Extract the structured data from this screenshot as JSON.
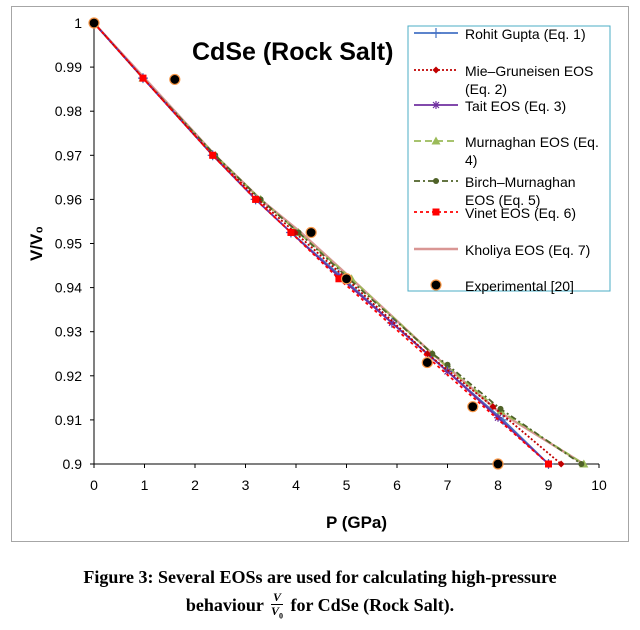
{
  "chart_data": {
    "type": "line",
    "title": "CdSe (Rock Salt)",
    "xlabel": "P (GPa)",
    "ylabel": "V/V₀",
    "xlim": [
      0,
      10
    ],
    "ylim": [
      0.9,
      1.0
    ],
    "x_ticks": [
      "0",
      "1",
      "2",
      "3",
      "4",
      "5",
      "6",
      "7",
      "8",
      "9",
      "10"
    ],
    "y_ticks": [
      "0.9",
      "0.91",
      "0.92",
      "0.93",
      "0.94",
      "0.95",
      "0.96",
      "0.97",
      "0.98",
      "0.99",
      "1"
    ],
    "grid": false,
    "legend_position": "top-right",
    "series": [
      {
        "name": "Rohit Gupta (Eq. 1)",
        "color": "#4472c4",
        "dash": "",
        "marker": "plus",
        "marker_color": "#4472c4",
        "x": [
          0,
          0.97,
          2.35,
          3.2,
          3.9,
          4.85,
          5.9,
          7.0,
          8.1,
          9.0
        ],
        "y": [
          1.0,
          0.9875,
          0.97,
          0.96,
          0.9525,
          0.943,
          0.932,
          0.921,
          0.91,
          0.9
        ]
      },
      {
        "name": "Mie–Gruneisen EOS (Eq. 2)",
        "color": "#c00000",
        "dash": "2,2",
        "marker": "diamond",
        "marker_color": "#c00000",
        "x": [
          0,
          0.97,
          2.35,
          3.25,
          3.98,
          5.0,
          6.6,
          7.9,
          9.25
        ],
        "y": [
          1.0,
          0.9875,
          0.97,
          0.96,
          0.9525,
          0.942,
          0.925,
          0.913,
          0.9
        ]
      },
      {
        "name": "Tait EOS (Eq. 3)",
        "color": "#7030a0",
        "dash": "",
        "marker": "star",
        "marker_color": "#7030a0",
        "x": [
          0,
          0.97,
          2.35,
          3.2,
          3.9,
          4.85,
          5.9,
          7.0,
          8.0,
          9.0
        ],
        "y": [
          1.0,
          0.9875,
          0.97,
          0.96,
          0.9525,
          0.9425,
          0.932,
          0.921,
          0.9105,
          0.9
        ]
      },
      {
        "name": "Murnaghan EOS (Eq. 4)",
        "color": "#9bbb59",
        "dash": "7,4",
        "marker": "triangle",
        "marker_color": "#9bbb59",
        "x": [
          0,
          0.97,
          2.4,
          3.3,
          4.05,
          5.1,
          6.7,
          7.0,
          8.05,
          9.7
        ],
        "y": [
          1.0,
          0.9875,
          0.97,
          0.96,
          0.9525,
          0.942,
          0.925,
          0.922,
          0.912,
          0.9
        ]
      },
      {
        "name": "Birch–Murnaghan EOS (Eq. 5)",
        "color": "#4f6228",
        "dash": "6,3,2,3",
        "marker": "circle",
        "marker_color": "#4f6228",
        "x": [
          0,
          0.97,
          2.4,
          3.3,
          4.05,
          5.05,
          6.7,
          7.0,
          8.05,
          9.65
        ],
        "y": [
          1.0,
          0.9875,
          0.97,
          0.96,
          0.9525,
          0.942,
          0.925,
          0.9225,
          0.9125,
          0.9
        ]
      },
      {
        "name": "Vinet EOS (Eq. 6)",
        "color": "#ff0000",
        "dash": "3,3",
        "marker": "square",
        "marker_color": "#ff0000",
        "x": [
          0,
          0.97,
          2.35,
          3.2,
          3.9,
          4.85,
          9.0
        ],
        "y": [
          1.0,
          0.9875,
          0.97,
          0.96,
          0.9525,
          0.942,
          0.9
        ]
      },
      {
        "name": "Kholiya EOS (Eq. 7)",
        "color": "#d99694",
        "dash": "",
        "marker": "none",
        "marker_color": "#d99694",
        "x": [
          0,
          1.0,
          2.4,
          3.3,
          4.1,
          5.1,
          6.7,
          8.0,
          9.7
        ],
        "y": [
          1.0,
          0.9875,
          0.97,
          0.96,
          0.9525,
          0.942,
          0.925,
          0.912,
          0.9
        ]
      },
      {
        "name": "Experimental [20]",
        "color": "#000000",
        "dash": "",
        "marker": "dot",
        "marker_color": "#000000",
        "no_line": true,
        "x": [
          0,
          1.6,
          4.3,
          5.0,
          6.6,
          7.5,
          8.0
        ],
        "y": [
          1.0,
          0.9872,
          0.9525,
          0.942,
          0.923,
          0.913,
          0.9
        ]
      }
    ]
  },
  "legend_lines": [
    [
      "Rohit Gupta (Eq. 1)"
    ],
    [
      "Mie–Gruneisen EOS",
      "(Eq. 2)"
    ],
    [
      "Tait EOS (Eq. 3)"
    ],
    [
      "Murnaghan EOS (Eq.",
      "4)"
    ],
    [
      "Birch–Murnaghan",
      "EOS (Eq. 5)"
    ],
    [
      "Vinet EOS (Eq. 6)"
    ],
    [
      "Kholiya EOS (Eq. 7)"
    ],
    [
      "Experimental [20]"
    ]
  ],
  "caption": {
    "line1": "Figure 3: Several EOSs are used for calculating high-pressure",
    "line2_before": "behaviour",
    "frac_num": "V",
    "frac_den": "V",
    "frac_den_sub": "0",
    "line2_after": "for CdSe (Rock Salt)."
  }
}
